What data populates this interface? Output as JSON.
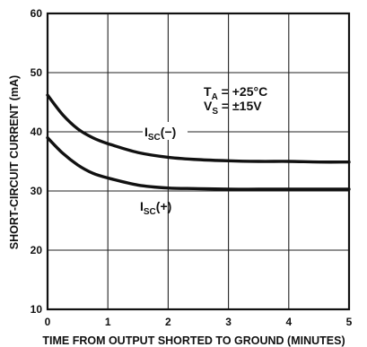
{
  "chart_data": {
    "type": "line",
    "xlabel": "TIME FROM OUTPUT SHORTED TO GROUND (MINUTES)",
    "ylabel": "SHORT-CIRCUIT CURRENT (mA)",
    "xlim": [
      0,
      5
    ],
    "ylim": [
      10,
      60
    ],
    "x_ticks": [
      "0",
      "1",
      "2",
      "3",
      "4",
      "5"
    ],
    "y_ticks": [
      "10",
      "20",
      "30",
      "40",
      "50",
      "60"
    ],
    "grid": true,
    "series": [
      {
        "name_main": "I",
        "name_sub": "SC",
        "name_suffix": "(−)",
        "x": [
          0,
          0.25,
          0.5,
          0.75,
          1,
          1.5,
          2,
          2.5,
          3,
          3.5,
          4,
          4.5,
          5
        ],
        "y": [
          46.2,
          42.9,
          40.5,
          39.0,
          38.0,
          36.5,
          35.7,
          35.3,
          35.1,
          35.0,
          35.0,
          34.9,
          34.9
        ]
      },
      {
        "name_main": "I",
        "name_sub": "SC",
        "name_suffix": "(+)",
        "x": [
          0,
          0.25,
          0.5,
          0.75,
          1,
          1.5,
          2,
          2.5,
          3,
          3.5,
          4,
          4.5,
          5
        ],
        "y": [
          39.0,
          36.4,
          34.4,
          33.0,
          32.2,
          31.0,
          30.5,
          30.4,
          30.3,
          30.3,
          30.3,
          30.3,
          30.3
        ]
      }
    ],
    "conditions": {
      "ta_main": "T",
      "ta_sub": "A",
      "ta_value": " = +25°C",
      "vs_main": "V",
      "vs_sub": "S",
      "vs_value": " = ±15V"
    }
  }
}
